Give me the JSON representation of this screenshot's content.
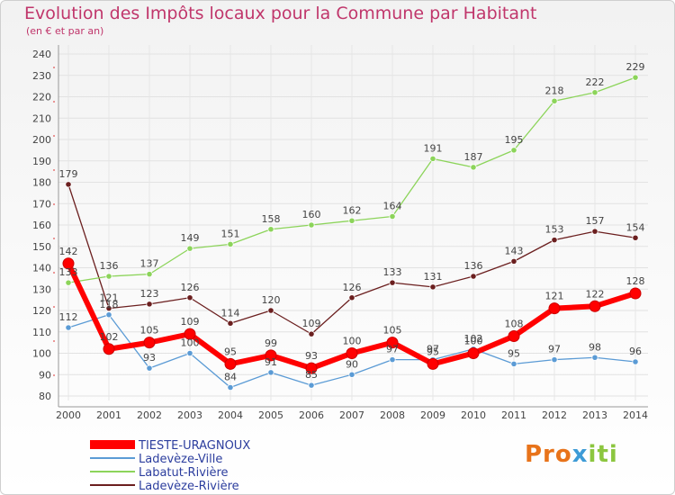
{
  "chart_data": {
    "type": "line",
    "title": "Evolution des Impôts locaux pour la Commune par Habitant",
    "subtitle": "(en € et par an)",
    "xlabel": "",
    "ylabel": "",
    "ylim": [
      80,
      240
    ],
    "yticks": [
      80,
      90,
      100,
      110,
      120,
      130,
      140,
      150,
      160,
      170,
      180,
      190,
      200,
      210,
      220,
      230,
      240
    ],
    "categories": [
      "2000",
      "2001",
      "2002",
      "2003",
      "2004",
      "2005",
      "2006",
      "2007",
      "2008",
      "2009",
      "2010",
      "2011",
      "2012",
      "2013",
      "2014"
    ],
    "grid": true,
    "legend": "bottom-left",
    "series": [
      {
        "name": "Ladevèze-Rivière",
        "color": "#6b1f1f",
        "values": [
          179,
          121,
          123,
          126,
          114,
          120,
          109,
          126,
          133,
          131,
          136,
          143,
          153,
          157,
          154
        ]
      },
      {
        "name": "Labatut-Rivière",
        "color": "#8cd45a",
        "values": [
          133,
          136,
          137,
          149,
          151,
          158,
          160,
          162,
          164,
          191,
          187,
          195,
          218,
          222,
          229
        ]
      },
      {
        "name": "Ladevèze-Ville",
        "color": "#5b9bd5",
        "values": [
          112,
          118,
          93,
          100,
          84,
          91,
          85,
          90,
          97,
          97,
          102,
          95,
          97,
          98,
          96
        ]
      },
      {
        "name": "TIESTE-URAGNOUX",
        "color": "#ff0000",
        "values": [
          142,
          102,
          105,
          109,
          95,
          99,
          93,
          100,
          105,
          95,
          100,
          108,
          121,
          122,
          128
        ]
      }
    ],
    "legend_order": [
      "TIESTE-URAGNOUX",
      "Ladevèze-Ville",
      "Labatut-Rivière",
      "Ladevèze-Rivière"
    ]
  },
  "logo": {
    "part1": "Pro",
    "part2": "x",
    "part3": "iti"
  }
}
